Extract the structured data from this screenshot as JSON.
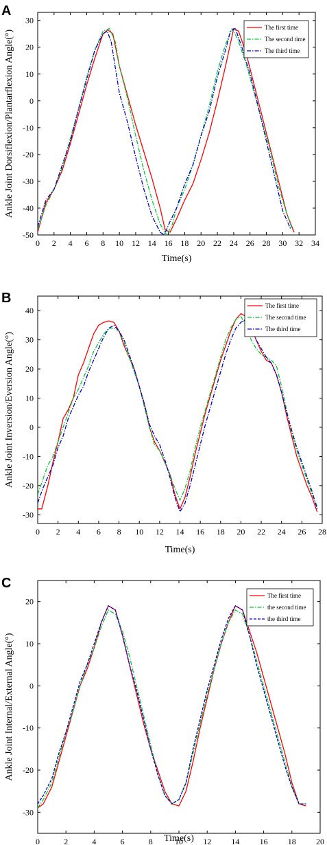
{
  "chart_data": [
    {
      "panel": "A",
      "type": "line",
      "xlabel": "Time(s)",
      "ylabel": "Ankle Joint Dorsiflexion/Plantarflexion Angle(°)",
      "xlim": [
        0,
        34
      ],
      "ylim": [
        -50,
        33
      ],
      "xticks": [
        "0",
        "2",
        "4",
        "6",
        "8",
        "10",
        "12",
        "14",
        "16",
        "18",
        "20",
        "22",
        "24",
        "26",
        "28",
        "30",
        "32",
        "34"
      ],
      "yticks": [
        "-50",
        "-40",
        "-30",
        "-20",
        "-10",
        "0",
        "10",
        "20",
        "30"
      ],
      "legend_position": "top-right",
      "series": [
        {
          "name": "The first time",
          "color": "#ff0000",
          "style": "solid",
          "x": [
            0,
            1,
            2,
            3,
            4,
            5,
            6,
            7,
            8,
            8.6,
            9.2,
            10,
            11,
            12,
            13,
            14,
            15,
            15.6,
            16.2,
            17,
            18,
            19,
            20,
            21,
            22,
            23,
            24,
            24.6,
            25.5,
            26.5,
            27.5,
            28.5,
            29.5,
            30.5,
            31.4
          ],
          "y": [
            -49,
            -38,
            -33,
            -26,
            -16,
            -5,
            6,
            16,
            25,
            26.5,
            25,
            13,
            2,
            -9,
            -19,
            -29,
            -40,
            -48,
            -49,
            -44,
            -37,
            -31,
            -22,
            -12,
            0,
            13,
            27,
            26,
            18,
            6,
            -6,
            -18,
            -30,
            -42,
            -49
          ]
        },
        {
          "name": "The second time",
          "color": "#00cc33",
          "style": "dashdot",
          "x": [
            0,
            1,
            2,
            3,
            4,
            5,
            6,
            7,
            8,
            8.8,
            9.5,
            10,
            11,
            12,
            13,
            14,
            15,
            15.8,
            16.5,
            17,
            18,
            19,
            20,
            21,
            22,
            23,
            23.8,
            24.5,
            25.5,
            26.5,
            27.5,
            28.5,
            29.5,
            30.5,
            31.2
          ],
          "y": [
            -48,
            -39,
            -33,
            -25,
            -14,
            -3,
            9,
            19,
            26,
            27,
            22,
            13,
            1,
            -13,
            -26,
            -37,
            -46,
            -50,
            -46,
            -40,
            -33,
            -24,
            -13,
            -2,
            11,
            21,
            27,
            23,
            14,
            3,
            -8,
            -19,
            -32,
            -42,
            -48
          ]
        },
        {
          "name": "The third time",
          "color": "#0000cc",
          "style": "dashdot",
          "x": [
            0,
            1,
            2,
            3,
            4,
            5,
            6,
            7,
            8,
            8.5,
            9,
            10,
            11,
            12,
            13,
            14,
            15,
            15.5,
            16.2,
            17,
            18,
            19,
            20,
            21,
            22,
            23,
            23.6,
            24.2,
            25,
            26,
            27,
            28,
            29,
            30,
            31
          ],
          "y": [
            -47,
            -37,
            -33,
            -24,
            -15,
            -3,
            8,
            19,
            25,
            26,
            22,
            3,
            -8,
            -21,
            -33,
            -43,
            -49,
            -50,
            -45,
            -40,
            -31,
            -24,
            -13,
            -4,
            9,
            19,
            26,
            27,
            20,
            10,
            -2,
            -15,
            -28,
            -41,
            -48
          ]
        }
      ]
    },
    {
      "panel": "B",
      "type": "line",
      "xlabel": "Time(s)",
      "ylabel": "Ankle Joint Inversion/Eversion Angle(°)",
      "xlim": [
        0,
        28
      ],
      "ylim": [
        -33,
        45
      ],
      "xticks": [
        "0",
        "2",
        "4",
        "6",
        "8",
        "10",
        "12",
        "14",
        "16",
        "18",
        "20",
        "22",
        "24",
        "26",
        "28"
      ],
      "yticks": [
        "-30",
        "-20",
        "-10",
        "0",
        "10",
        "20",
        "30",
        "40"
      ],
      "legend_position": "top-right",
      "series": [
        {
          "name": "The first time",
          "color": "#ff0000",
          "style": "solid",
          "x": [
            0,
            0.4,
            1,
            1.5,
            2,
            2.5,
            3,
            3.5,
            4,
            4.5,
            5,
            5.5,
            6,
            6.5,
            7,
            7.5,
            8,
            8.5,
            9,
            9.5,
            10,
            10.5,
            11,
            11.5,
            12,
            12.5,
            13,
            13.5,
            14,
            14.5,
            15,
            15.5,
            16,
            16.5,
            17,
            17.5,
            18,
            18.5,
            19,
            19.5,
            20,
            20.5,
            21,
            21.5,
            22,
            22.5,
            23,
            23.5,
            24,
            24.5,
            25,
            25.5,
            26,
            26.5,
            27,
            27.5
          ],
          "y": [
            -28,
            -28,
            -20,
            -12,
            -5,
            3,
            6,
            10,
            18,
            22,
            27,
            32,
            35,
            36,
            36.5,
            36,
            33,
            28,
            24,
            20,
            14,
            8,
            0,
            -5,
            -8,
            -12,
            -16,
            -23,
            -28,
            -24,
            -17,
            -9,
            -2,
            5,
            11,
            17,
            23,
            28,
            33,
            37,
            39,
            38,
            34,
            30,
            26,
            23,
            22,
            18,
            12,
            4,
            -3,
            -10,
            -15,
            -20,
            -24,
            -29
          ]
        },
        {
          "name": "The second time",
          "color": "#00cc33",
          "style": "dashdot",
          "x": [
            0,
            0.5,
            1,
            1.5,
            2,
            2.5,
            3,
            3.5,
            4,
            4.5,
            5,
            5.5,
            6,
            6.5,
            7,
            7.5,
            8,
            8.5,
            9,
            9.5,
            10,
            10.5,
            11,
            11.5,
            12,
            12.5,
            13,
            13.5,
            14,
            14.5,
            15,
            15.5,
            16,
            16.5,
            17,
            17.5,
            18,
            18.5,
            19,
            19.5,
            20,
            20.5,
            21,
            21.5,
            22,
            22.5,
            23,
            23.5,
            24,
            24.5,
            25,
            25.5,
            26,
            26.5,
            27,
            27.5
          ],
          "y": [
            -23,
            -18,
            -13,
            -10,
            -5,
            0,
            5,
            10,
            13,
            17,
            21,
            26,
            29,
            32,
            34,
            34,
            33,
            29,
            24,
            19,
            14,
            7,
            0,
            -6,
            -8,
            -12,
            -16,
            -21,
            -25,
            -21,
            -15,
            -7,
            0,
            6,
            12,
            18,
            24,
            30,
            34,
            37,
            38,
            35,
            30,
            27,
            25,
            24,
            23,
            21,
            14,
            6,
            -2,
            -8,
            -13,
            -18,
            -23,
            -27
          ]
        },
        {
          "name": "The third time",
          "color": "#0000cc",
          "style": "dashdot",
          "x": [
            0,
            0.5,
            1,
            1.5,
            2,
            2.5,
            3,
            3.5,
            4,
            4.5,
            5,
            5.5,
            6,
            6.5,
            7,
            7.5,
            8,
            8.5,
            9,
            9.5,
            10,
            10.5,
            11,
            11.5,
            12,
            12.5,
            13,
            13.5,
            14,
            14.5,
            15,
            15.5,
            16,
            16.5,
            17,
            17.5,
            18,
            18.5,
            19,
            19.5,
            20,
            20.5,
            21,
            21.5,
            22,
            22.5,
            23,
            23.5,
            24,
            24.5,
            25,
            25.5,
            26,
            26.5,
            27,
            27.5
          ],
          "y": [
            -26,
            -21,
            -17,
            -13,
            -7,
            -3,
            3,
            7,
            11,
            14,
            19,
            23,
            27,
            31,
            34,
            35,
            33,
            30,
            25,
            20,
            14,
            8,
            1,
            -3,
            -6,
            -11,
            -17,
            -24,
            -29,
            -26,
            -20,
            -13,
            -6,
            1,
            7,
            13,
            19,
            25,
            30,
            34,
            36,
            37,
            34,
            30,
            27,
            24,
            22,
            18,
            12,
            5,
            -1,
            -7,
            -12,
            -17,
            -22,
            -28
          ]
        }
      ]
    },
    {
      "panel": "C",
      "type": "line",
      "xlabel": "Time(s)",
      "ylabel": "Ankle Joint Internal/External Angle(°)",
      "xlim": [
        0,
        20
      ],
      "ylim": [
        -35,
        25
      ],
      "xticks": [
        "0",
        "2",
        "4",
        "6",
        "8",
        "10",
        "12",
        "14",
        "16",
        "18",
        "20"
      ],
      "yticks": [
        "-30",
        "-20",
        "-10",
        "0",
        "10",
        "20"
      ],
      "legend_position": "top-right",
      "series": [
        {
          "name": "The first time",
          "color": "#ff0000",
          "style": "solid",
          "x": [
            0,
            0.4,
            1,
            1.5,
            2,
            2.5,
            3,
            3.5,
            4,
            4.5,
            5,
            5.5,
            6,
            6.5,
            7,
            7.5,
            8,
            8.5,
            9,
            9.5,
            10,
            10.5,
            11,
            11.5,
            12,
            12.5,
            13,
            13.5,
            14,
            14.5,
            15,
            15.5,
            16,
            16.5,
            17,
            17.5,
            18,
            18.5,
            19
          ],
          "y": [
            -29,
            -28,
            -24,
            -18,
            -12,
            -6,
            0,
            4,
            9,
            15,
            19,
            18,
            12,
            5,
            -2,
            -9,
            -15,
            -20,
            -25,
            -28,
            -28.5,
            -25,
            -18,
            -10,
            -3,
            4,
            10,
            15,
            19,
            18,
            13,
            8,
            2,
            -4,
            -10,
            -16,
            -23,
            -28,
            -28.5
          ]
        },
        {
          "name": "the second time",
          "color": "#00cc33",
          "style": "dashdot",
          "x": [
            0,
            0.4,
            1,
            1.5,
            2,
            2.5,
            3,
            3.5,
            4,
            4.5,
            5,
            5.5,
            6,
            6.5,
            7,
            7.5,
            8,
            8.5,
            9,
            9.5,
            10,
            10.5,
            11,
            11.5,
            12,
            12.5,
            13,
            13.5,
            14,
            14.5,
            15,
            15.5,
            16,
            16.5,
            17,
            17.5,
            18,
            18.5,
            19
          ],
          "y": [
            -29,
            -27,
            -23,
            -17,
            -11,
            -6,
            0,
            5,
            9,
            14,
            18,
            17,
            13,
            7,
            0,
            -7,
            -14,
            -21,
            -26,
            -28,
            -27,
            -23,
            -16,
            -9,
            -2,
            4,
            10,
            15,
            18,
            17,
            12,
            6,
            0,
            -6,
            -12,
            -18,
            -24,
            -28,
            -28
          ]
        },
        {
          "name": "the third time",
          "color": "#0000cc",
          "style": "dashed",
          "x": [
            0,
            0.4,
            1,
            1.5,
            2,
            2.5,
            3,
            3.5,
            4,
            4.5,
            5,
            5.5,
            6,
            6.5,
            7,
            7.5,
            8,
            8.5,
            9,
            9.5,
            10,
            10.5,
            11,
            11.5,
            12,
            12.5,
            13,
            13.5,
            14,
            14.5,
            15,
            15.5,
            16,
            16.5,
            17,
            17.5,
            18,
            18.5,
            19
          ],
          "y": [
            -28,
            -26,
            -22,
            -16,
            -11,
            -5,
            1,
            5,
            10,
            15,
            19,
            18,
            12,
            5,
            -1,
            -8,
            -15,
            -21,
            -26,
            -28,
            -27,
            -23,
            -15,
            -8,
            -1,
            5,
            11,
            16,
            19,
            18,
            12,
            5,
            -1,
            -7,
            -13,
            -19,
            -24,
            -28,
            -28
          ]
        }
      ]
    }
  ]
}
